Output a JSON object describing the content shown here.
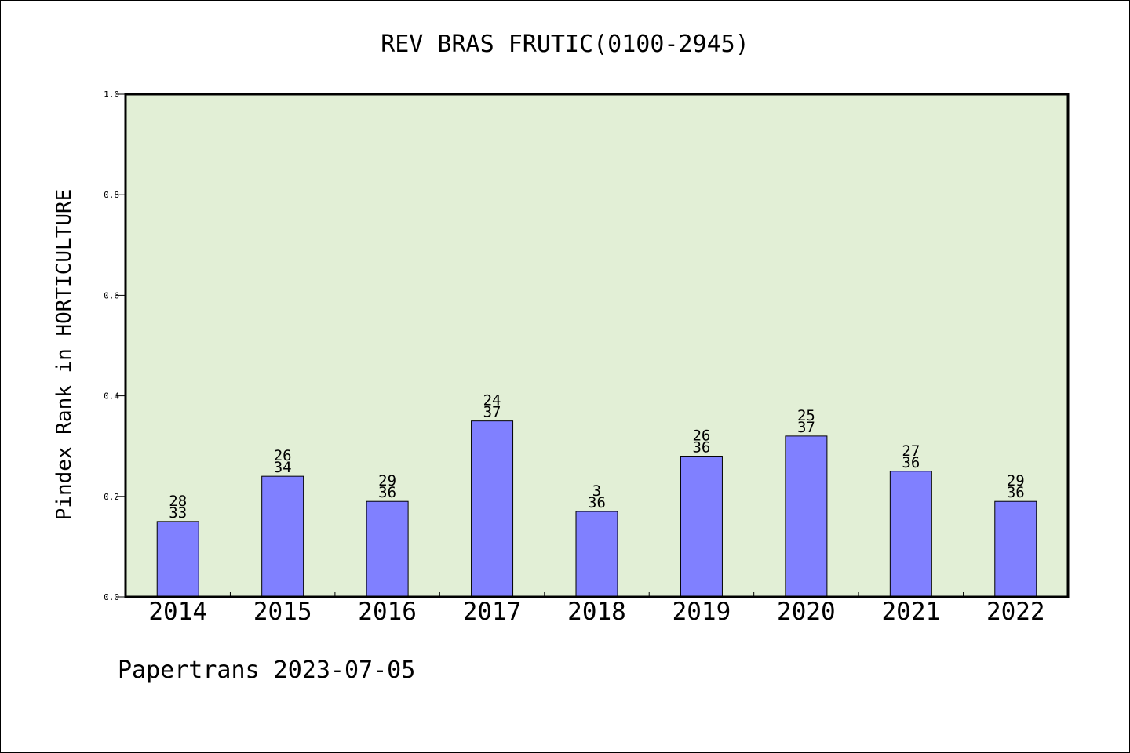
{
  "chart_data": {
    "type": "bar",
    "title": "REV BRAS FRUTIC(0100-2945)",
    "xlabel": "",
    "ylabel": "Pindex Rank in HORTICULTURE",
    "ylim": [
      0.0,
      1.0
    ],
    "yticks": [
      "0.0",
      "0.2",
      "0.4",
      "0.6",
      "0.8",
      "1.0"
    ],
    "grid": false,
    "categories": [
      "2014",
      "2015",
      "2016",
      "2017",
      "2018",
      "2019",
      "2020",
      "2021",
      "2022"
    ],
    "values": [
      0.15,
      0.24,
      0.19,
      0.35,
      0.17,
      0.28,
      0.32,
      0.25,
      0.19
    ],
    "labels": [
      {
        "top": "28",
        "bottom": "33"
      },
      {
        "top": "26",
        "bottom": "34"
      },
      {
        "top": "29",
        "bottom": "36"
      },
      {
        "top": "24",
        "bottom": "37"
      },
      {
        "top": "3",
        "bottom": "36"
      },
      {
        "top": "26",
        "bottom": "36"
      },
      {
        "top": "25",
        "bottom": "37"
      },
      {
        "top": "27",
        "bottom": "36"
      },
      {
        "top": "29",
        "bottom": "36"
      }
    ],
    "colors": {
      "bar": "#8080ff",
      "plot_background": "#e2efd6"
    }
  },
  "footer": "Papertrans 2023-07-05"
}
